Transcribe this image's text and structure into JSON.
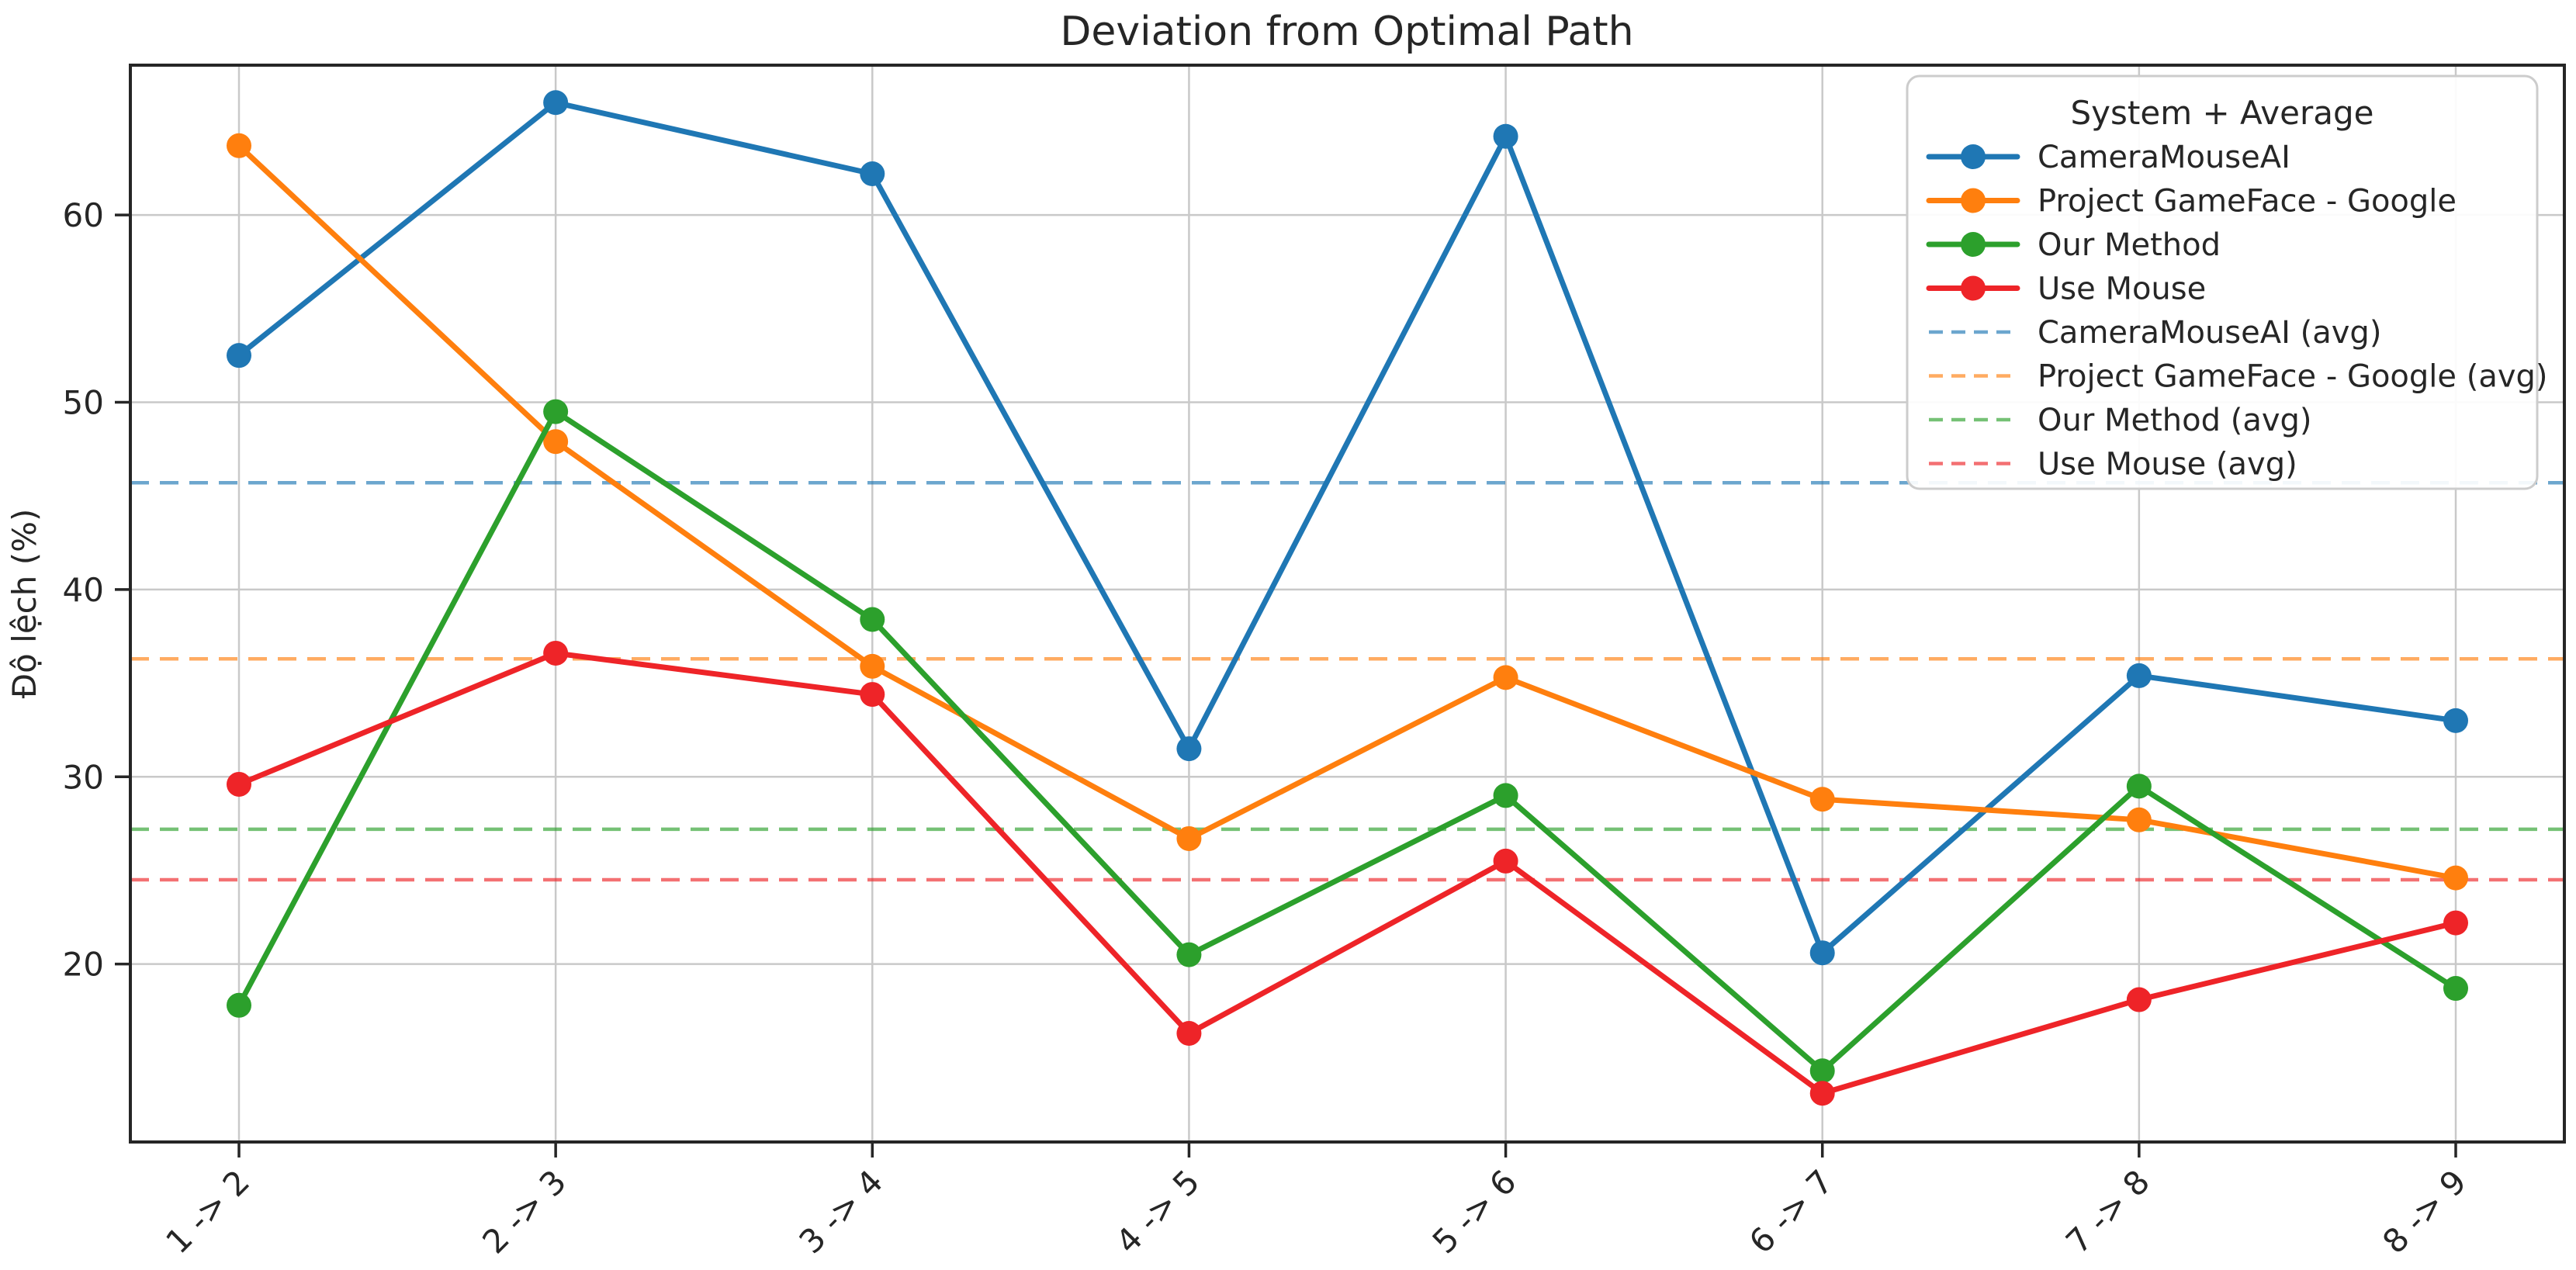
{
  "chart_data": {
    "type": "line",
    "title": "Deviation from Optimal Path",
    "xlabel": "",
    "ylabel": "Độ lệch (%)",
    "legend_title": "System + Average",
    "legend_position": "upper right",
    "grid": true,
    "ylim": [
      10.5,
      68.0
    ],
    "yticks": [
      20,
      30,
      40,
      50,
      60
    ],
    "categories": [
      "1 -> 2",
      "2 -> 3",
      "3 -> 4",
      "4 -> 5",
      "5 -> 6",
      "6 -> 7",
      "7 -> 8",
      "8 -> 9"
    ],
    "series": [
      {
        "name": "CameraMouseAI",
        "color": "#1f77b4",
        "values": [
          52.5,
          66.0,
          62.2,
          31.5,
          64.2,
          20.6,
          35.4,
          33.0
        ]
      },
      {
        "name": "Project GameFace - Google",
        "color": "#ff7f0e",
        "values": [
          63.7,
          47.9,
          35.9,
          26.7,
          35.3,
          28.8,
          27.7,
          24.6
        ]
      },
      {
        "name": "Our Method",
        "color": "#2ca02c",
        "values": [
          17.8,
          49.5,
          38.4,
          20.5,
          29.0,
          14.3,
          29.5,
          18.7
        ]
      },
      {
        "name": "Use Mouse",
        "color": "#ee2428",
        "values": [
          29.6,
          36.6,
          34.4,
          16.3,
          25.5,
          13.1,
          18.1,
          22.2
        ]
      }
    ],
    "avg_series": [
      {
        "name": "CameraMouseAI (avg)",
        "color": "#1f77b4",
        "value": 45.7
      },
      {
        "name": "Project GameFace - Google (avg)",
        "color": "#ff7f0e",
        "value": 36.3
      },
      {
        "name": "Our Method (avg)",
        "color": "#2ca02c",
        "value": 27.2
      },
      {
        "name": "Use Mouse (avg)",
        "color": "#ee2428",
        "value": 24.5
      }
    ],
    "axis_color": "#262626",
    "grid_color": "#c9c9c9"
  }
}
